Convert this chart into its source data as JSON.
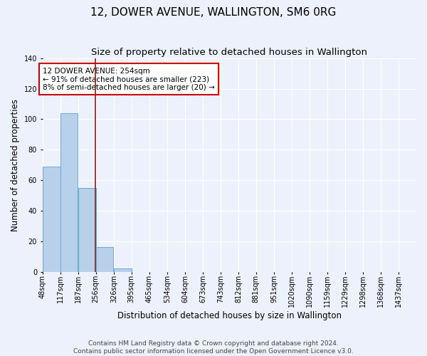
{
  "title": "12, DOWER AVENUE, WALLINGTON, SM6 0RG",
  "subtitle": "Size of property relative to detached houses in Wallington",
  "xlabel": "Distribution of detached houses by size in Wallington",
  "ylabel": "Number of detached properties",
  "bin_labels": [
    "48sqm",
    "117sqm",
    "187sqm",
    "256sqm",
    "326sqm",
    "395sqm",
    "465sqm",
    "534sqm",
    "604sqm",
    "673sqm",
    "743sqm",
    "812sqm",
    "881sqm",
    "951sqm",
    "1020sqm",
    "1090sqm",
    "1159sqm",
    "1229sqm",
    "1298sqm",
    "1368sqm",
    "1437sqm"
  ],
  "bin_edges": [
    48,
    117,
    187,
    256,
    326,
    395,
    465,
    534,
    604,
    673,
    743,
    812,
    881,
    951,
    1020,
    1090,
    1159,
    1229,
    1298,
    1368,
    1437
  ],
  "bar_heights": [
    69,
    104,
    55,
    16,
    2,
    0,
    0,
    0,
    0,
    0,
    0,
    0,
    0,
    0,
    0,
    0,
    0,
    0,
    0,
    0
  ],
  "bar_color": "#b8d0ea",
  "bar_edge_color": "#6aaad4",
  "property_size": 254,
  "property_line_color": "#cc0000",
  "annotation_text": "12 DOWER AVENUE: 254sqm\n← 91% of detached houses are smaller (223)\n8% of semi-detached houses are larger (20) →",
  "annotation_box_color": "#cc0000",
  "annotation_bg_color": "#ffffff",
  "ylim": [
    0,
    140
  ],
  "footer_line1": "Contains HM Land Registry data © Crown copyright and database right 2024.",
  "footer_line2": "Contains public sector information licensed under the Open Government Licence v3.0.",
  "bg_color": "#edf1fb",
  "grid_color": "#ffffff",
  "title_fontsize": 11,
  "subtitle_fontsize": 9.5,
  "label_fontsize": 8.5,
  "tick_fontsize": 7,
  "footer_fontsize": 6.5,
  "annotation_fontsize": 7.5
}
